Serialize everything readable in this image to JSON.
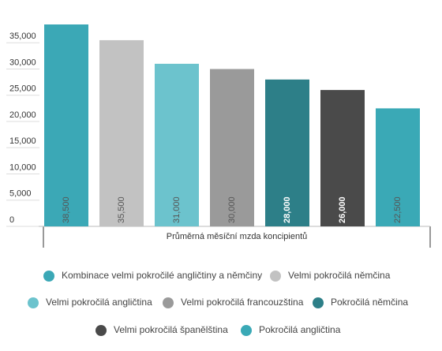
{
  "chart_data": {
    "type": "bar",
    "x_label": "Průměrná měsíční mzda koncipientů",
    "ylim": [
      0,
      38500
    ],
    "yticks": [
      0,
      {
        "value": 5000,
        "label": "5,000"
      },
      {
        "value": 10000,
        "label": "10,000"
      },
      {
        "value": 15000,
        "label": "15,000"
      },
      {
        "value": 20000,
        "label": "20,000"
      },
      {
        "value": 25000,
        "label": "25,000"
      },
      {
        "value": 30000,
        "label": "30,000"
      },
      {
        "value": 35000,
        "label": "35,000"
      }
    ],
    "series": [
      {
        "name": "Kombinace velmi pokročilé angličtiny a němčiny",
        "color": "#3ba8b6",
        "values": [
          38500
        ],
        "value_labels": [
          "38,500"
        ]
      },
      {
        "name": "Velmi pokročilá němčina",
        "color": "#c2c2c2",
        "values": [
          35500
        ],
        "value_labels": [
          "35,500"
        ]
      },
      {
        "name": "Velmi pokročilá angličtina",
        "color": "#6cc3cd",
        "values": [
          31000
        ],
        "value_labels": [
          "31,000"
        ]
      },
      {
        "name": "Velmi pokročilá francouzština",
        "color": "#9a9a9a",
        "values": [
          30000
        ],
        "value_labels": [
          "30,000"
        ]
      },
      {
        "name": "Pokročilá němčina",
        "color": "#2d7f88",
        "values": [
          28000
        ],
        "value_labels": [
          "28,000"
        ]
      },
      {
        "name": "Velmi pokročilá španělština",
        "color": "#4a4a4a",
        "values": [
          26000
        ],
        "value_labels": [
          "26,000"
        ]
      },
      {
        "name": "Pokročilá angličtina",
        "color": "#3aa9b6",
        "values": [
          22500
        ],
        "value_labels": [
          "22,500"
        ]
      }
    ]
  }
}
